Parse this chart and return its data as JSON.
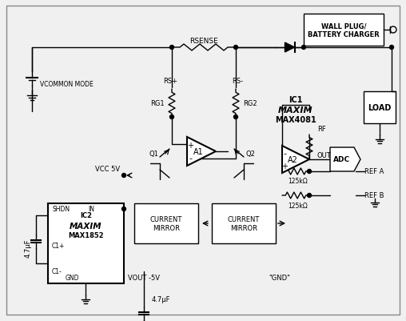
{
  "bg_color": "#f0f0f0",
  "box_color": "#ffffff",
  "line_color": "#000000",
  "title": "",
  "ic1_label": "IC1",
  "ic1_brand": "MAXIM",
  "ic1_part": "MAX4081",
  "ic2_label": "IC2",
  "ic2_brand": "MAXIM",
  "ic2_part": "MAX1852",
  "wall_plug_text": "WALL PLUG/\nBATTERY CHARGER",
  "load_text": "LOAD",
  "adc_text": "ADC",
  "rsense_text": "RSENSE",
  "vcommon_text": "VCOMMON MODE",
  "vcc_text": "VCC 5V",
  "vout_text": "VOUT -5V",
  "gnd_text": "\"GND\"",
  "rg1_text": "RG1",
  "rg2_text": "RG2",
  "rf_text": "RF",
  "rs_plus_text": "RS+",
  "rs_minus_text": "RS-",
  "q1_text": "Q1",
  "q2_text": "Q2",
  "a1_text": "A1",
  "a2_text": "A2",
  "out_text": "OUT",
  "ref_a_text": "REF A",
  "ref_b_text": "REF B",
  "r125k_text": "125kΩ",
  "shdn_text": "SHDN",
  "in_text": "IN",
  "c1p_text": "C1+",
  "c1m_text": "C1-",
  "gnd2_text": "GND",
  "cap_text": "4.7μF",
  "cap2_text": "4.7μF",
  "cm_text": "CURRENT\nMIRROR"
}
